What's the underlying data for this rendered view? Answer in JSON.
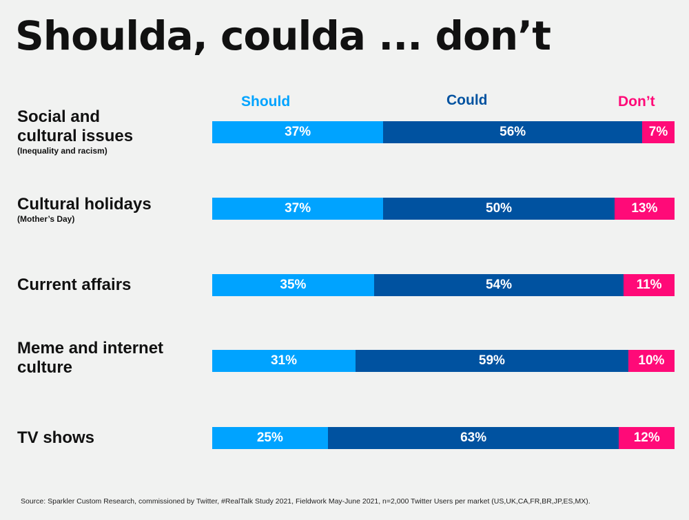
{
  "title": "Shoulda, coulda ... don’t",
  "source": "Source: Sparkler Custom Research, commissioned by Twitter, #RealTalk Study 2021, Fieldwork May-June 2021, n=2,000 Twitter Users per market (US,UK,CA,FR,BR,JP,ES,MX).",
  "chart_data": {
    "type": "bar",
    "orientation": "horizontal-stacked-100",
    "categories": [
      "Social and cultural issues",
      "Cultural holidays",
      "Current affairs",
      "Meme and internet culture",
      "TV shows"
    ],
    "subtitles": [
      "(Inequality and racism)",
      "(Mother’s Day)",
      "",
      "",
      ""
    ],
    "series": [
      {
        "name": "Should",
        "color": "#00a3ff",
        "values": [
          37,
          37,
          35,
          31,
          25
        ]
      },
      {
        "name": "Could",
        "color": "#0052a0",
        "values": [
          56,
          50,
          54,
          59,
          63
        ]
      },
      {
        "name": "Don’t",
        "color": "#ff0a78",
        "values": [
          7,
          13,
          11,
          10,
          12
        ]
      }
    ],
    "legend": "top"
  }
}
